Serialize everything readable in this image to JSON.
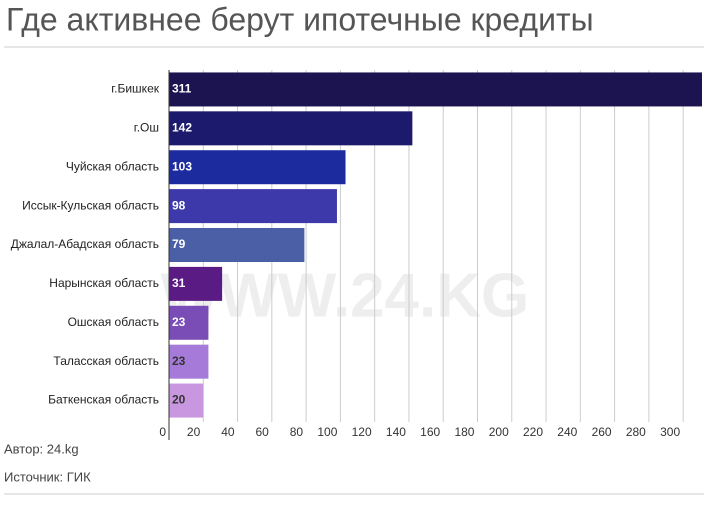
{
  "chart_data": {
    "type": "bar",
    "orientation": "horizontal",
    "title": "Где активнее берут ипотечные кредиты",
    "categories": [
      "г.Бишкек",
      "г.Ош",
      "Чуйская область",
      "Иссык-Кульская область",
      "Джалал-Абадская область",
      "Нарынская область",
      "Ошская область",
      "Таласская область",
      "Баткенская область"
    ],
    "values": [
      311,
      142,
      103,
      98,
      79,
      31,
      23,
      23,
      20
    ],
    "colors": [
      "#1c1450",
      "#1b1a6c",
      "#1c2b9e",
      "#3d39ab",
      "#4b5fa6",
      "#5a1b85",
      "#7a4cb6",
      "#a67ad8",
      "#c996e0"
    ],
    "xlim": [
      0,
      311
    ],
    "xticks": [
      0,
      20,
      40,
      60,
      80,
      100,
      120,
      140,
      160,
      180,
      200,
      220,
      240,
      260,
      280,
      300
    ],
    "grid": true,
    "watermark": "WWW.24.KG",
    "author": "Автор: 24.kg",
    "source": "Источник: ГИК"
  }
}
